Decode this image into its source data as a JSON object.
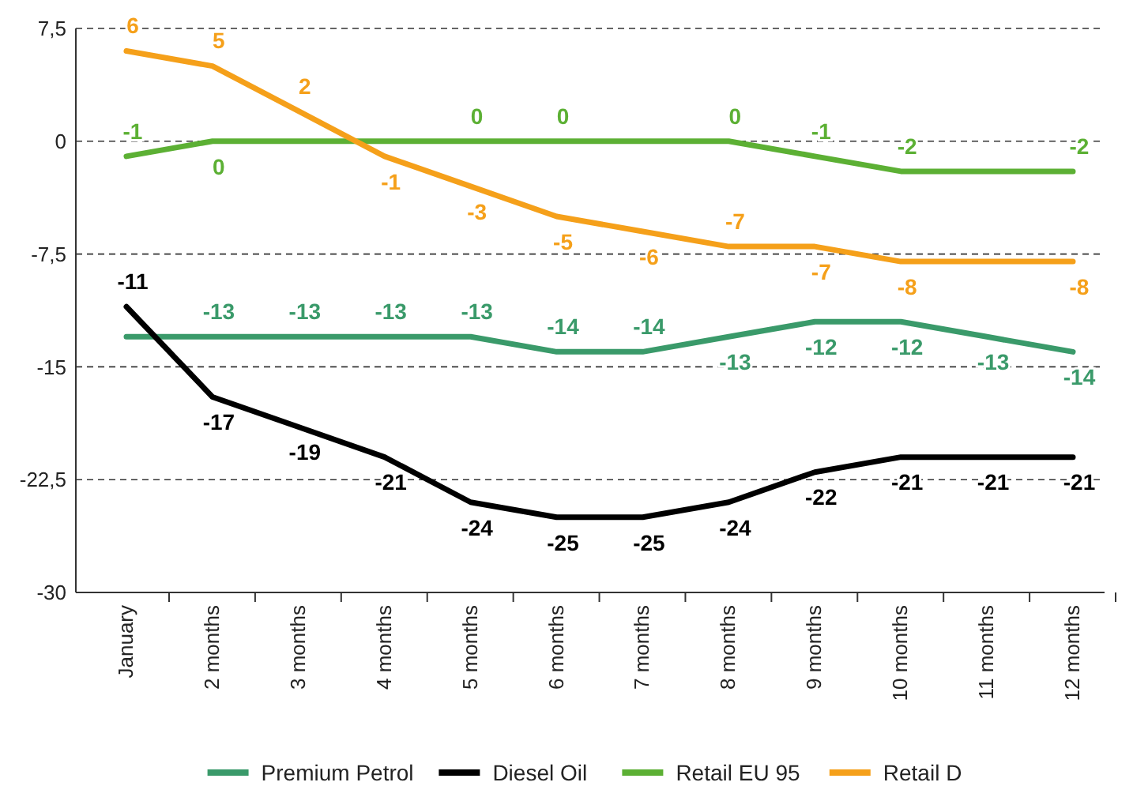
{
  "chart_data": {
    "type": "line",
    "categories": [
      "January",
      "2 months",
      "3 months",
      "4 months",
      "5 months",
      "6 months",
      "7 months",
      "8 months",
      "9 months",
      "10 months",
      "11 months",
      "12 months"
    ],
    "ylim": [
      -30,
      7.5
    ],
    "yticks": [
      {
        "value": 7.5,
        "label": "7,5"
      },
      0,
      {
        "value": -7.5,
        "label": "-7,5"
      },
      -15,
      {
        "value": -22.5,
        "label": "-22,5"
      },
      -30
    ],
    "grid": "y",
    "legend": "bottom",
    "marker": "none",
    "line_style": "solid",
    "series": [
      {
        "name": "Premium Petrol",
        "color": "#3a9a6a",
        "values": [
          -13,
          -13,
          -13,
          -13,
          -13,
          -14,
          -14,
          -13,
          -12,
          -12,
          -13,
          -14
        ],
        "value_labels": [
          null,
          "-13",
          "-13",
          "-13",
          "-13",
          "-14",
          "-14",
          "-13",
          "-12",
          "-12",
          "-13",
          "-14"
        ]
      },
      {
        "name": "Diesel Oil",
        "color": "#000000",
        "values": [
          -11,
          -17,
          -19,
          -21,
          -24,
          -25,
          -25,
          -24,
          -22,
          -21,
          -21,
          -21
        ],
        "value_labels": [
          "-11",
          "-17",
          "-19",
          "-21",
          "-24",
          "-25",
          "-25",
          "-24",
          "-22",
          "-21",
          "-21",
          "-21"
        ]
      },
      {
        "name": "Retail EU 95",
        "color": "#5cb034",
        "values": [
          -1,
          0,
          0,
          0,
          0,
          0,
          0,
          0,
          -1,
          -2,
          -2,
          -2
        ],
        "value_labels": [
          "-1",
          "0",
          null,
          null,
          "0",
          "0",
          null,
          "0",
          "-1",
          "-2",
          null,
          "-2"
        ]
      },
      {
        "name": "Retail D",
        "color": "#f5a01a",
        "values": [
          6,
          5,
          2,
          -1,
          -3,
          -5,
          -6,
          -7,
          -7,
          -8,
          -8,
          -8
        ],
        "value_labels": [
          "6",
          "5",
          "2",
          "-1",
          "-3",
          "-5",
          "-6",
          "-7",
          "-7",
          "-8",
          null,
          "-8"
        ]
      }
    ]
  }
}
